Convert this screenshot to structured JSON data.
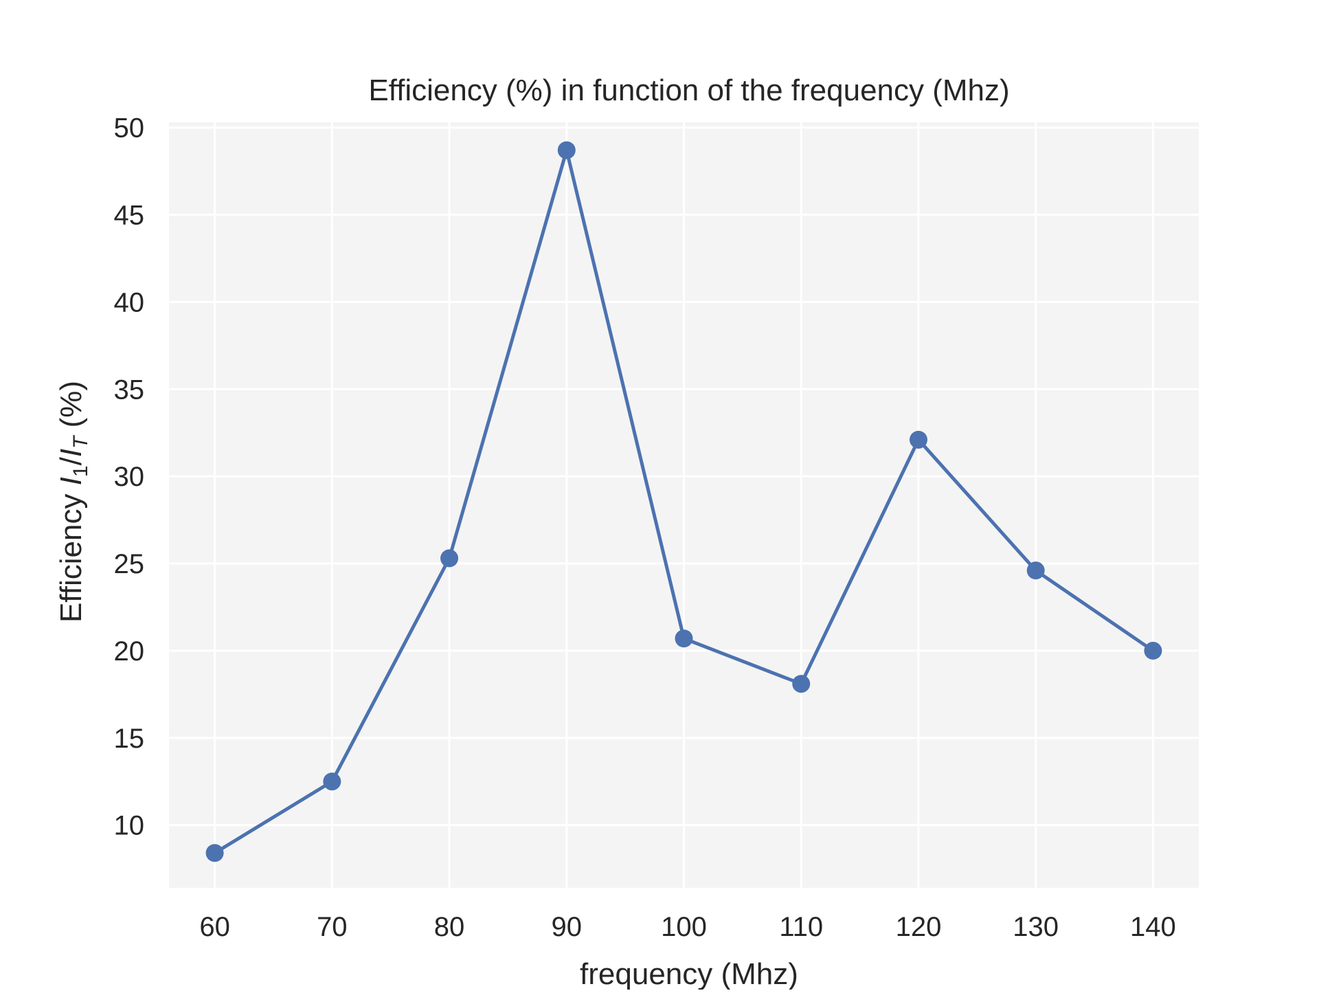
{
  "chart_data": {
    "type": "line",
    "title": "Efficiency (%) in function of the frequency (Mhz)",
    "xlabel": "frequency (Mhz)",
    "ylabel": {
      "prefix": "Efficiency ",
      "var1": "I",
      "sub1": "1",
      "sep": "/",
      "var2": "I",
      "sub2": "T",
      "suffix": " (%)"
    },
    "x": [
      60,
      70,
      80,
      90,
      100,
      110,
      120,
      130,
      140
    ],
    "series": [
      {
        "values": [
          8.4,
          12.5,
          25.3,
          48.7,
          20.7,
          18.1,
          32.1,
          24.6,
          20.0
        ]
      }
    ],
    "xticks": [
      60,
      70,
      80,
      90,
      100,
      110,
      120,
      130,
      140
    ],
    "yticks": [
      10,
      15,
      20,
      25,
      30,
      35,
      40,
      45,
      50
    ],
    "xlim": [
      56.1,
      143.9
    ],
    "ylim": [
      6.4,
      50.3
    ],
    "grid": true,
    "colors": {
      "line": "#4c72b0",
      "background": "#f4f4f4",
      "grid": "#ffffff",
      "text": "#262626"
    }
  }
}
